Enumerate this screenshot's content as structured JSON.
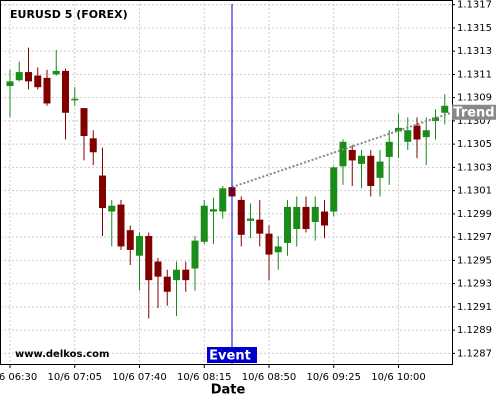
{
  "chart_data": {
    "type": "candlestick",
    "title": "EURUSD 5 (FOREX)",
    "watermark": "www.delkos.com",
    "x_label": "Date",
    "categories": [
      "10/6 06:30",
      null,
      null,
      null,
      null,
      null,
      null,
      "10/6 07:05",
      null,
      null,
      null,
      null,
      null,
      null,
      "10/6 07:40",
      null,
      null,
      null,
      null,
      null,
      null,
      "10/6 08:15",
      null,
      null,
      null,
      null,
      null,
      null,
      "10/6 08:50",
      null,
      null,
      null,
      null,
      null,
      null,
      "10/6 09:25",
      null,
      null,
      null,
      null,
      null,
      null,
      "10/6 10:00",
      null,
      null,
      null,
      null,
      null
    ],
    "open": [
      1.131,
      1.13105,
      1.13112,
      1.13109,
      1.13107,
      1.1311,
      1.13113,
      1.13088,
      1.13081,
      1.13055,
      1.13023,
      1.12992,
      1.12998,
      1.12976,
      1.12954,
      1.12971,
      1.12949,
      1.12936,
      1.12933,
      1.12942,
      1.12943,
      1.12966,
      1.12992,
      1.12992,
      1.13013,
      1.13002,
      1.12984,
      1.12985,
      1.12973,
      1.12957,
      1.12965,
      1.12977,
      1.12996,
      1.12983,
      1.12992,
      1.12992,
      1.13031,
      1.13045,
      1.13033,
      1.1304,
      1.13021,
      1.13039,
      1.13061,
      1.13052,
      1.13066,
      1.13056,
      1.1307,
      1.13077
    ],
    "high": [
      1.13114,
      1.13121,
      1.13133,
      1.13116,
      1.13114,
      1.13131,
      1.13115,
      1.13099,
      1.13081,
      1.13062,
      1.13047,
      1.13002,
      1.13002,
      1.1298,
      1.12974,
      1.12974,
      1.12952,
      1.12942,
      1.12949,
      1.12949,
      1.12971,
      1.13002,
      1.13004,
      1.13014,
      1.13015,
      1.13005,
      1.12999,
      1.13002,
      1.1298,
      1.12971,
      1.13002,
      1.13005,
      1.13005,
      1.13005,
      1.13002,
      1.13031,
      1.13054,
      1.13049,
      1.13045,
      1.13045,
      1.13045,
      1.13062,
      1.13076,
      1.13073,
      1.13073,
      1.13073,
      1.1308,
      1.13093
    ],
    "low": [
      1.13073,
      1.13104,
      1.13097,
      1.13097,
      1.13083,
      1.13109,
      1.13054,
      1.13083,
      1.13036,
      1.13032,
      1.12971,
      1.12962,
      1.12959,
      1.12946,
      1.12924,
      1.129,
      1.12909,
      1.12911,
      1.12902,
      1.12923,
      1.12924,
      1.12964,
      1.12964,
      1.12986,
      1.13002,
      1.12962,
      1.12969,
      1.12962,
      1.12933,
      1.12942,
      1.12954,
      1.12962,
      1.12974,
      1.12967,
      1.12969,
      1.12988,
      1.13015,
      1.13014,
      1.13012,
      1.13005,
      1.13005,
      1.13015,
      1.13038,
      1.13045,
      1.13038,
      1.13032,
      1.13054,
      1.13067
    ],
    "close": [
      1.13104,
      1.13112,
      1.13104,
      1.13099,
      1.13085,
      1.13113,
      1.13077,
      1.13089,
      1.13057,
      1.13043,
      1.12995,
      1.12997,
      1.12962,
      1.12959,
      1.12971,
      1.12933,
      1.12936,
      1.12923,
      1.12942,
      1.12933,
      1.12967,
      1.12997,
      1.12994,
      1.13012,
      1.13005,
      1.12972,
      1.12986,
      1.12973,
      1.12955,
      1.12962,
      1.12996,
      1.12996,
      1.12977,
      1.12996,
      1.1298,
      1.1303,
      1.13052,
      1.13036,
      1.1304,
      1.13014,
      1.13035,
      1.13052,
      1.13064,
      1.13062,
      1.13054,
      1.13062,
      1.13073,
      1.13083
    ],
    "up_color": "#1a8c1a",
    "down_color": "#800000",
    "ylim": [
      1.1286,
      1.13174
    ],
    "yticks": [
      1.1287,
      1.1289,
      1.1291,
      1.1293,
      1.1295,
      1.1297,
      1.1299,
      1.1301,
      1.1303,
      1.1305,
      1.1307,
      1.1309,
      1.1311,
      1.1313,
      1.1315,
      1.1317
    ],
    "grid": true,
    "event": {
      "label": "Event",
      "x": 24,
      "color": "#0000cc"
    },
    "trend": {
      "label": "Trend",
      "x": [
        24,
        47.7
      ],
      "values": [
        1.13013,
        1.13077
      ],
      "color": "#888888"
    }
  }
}
